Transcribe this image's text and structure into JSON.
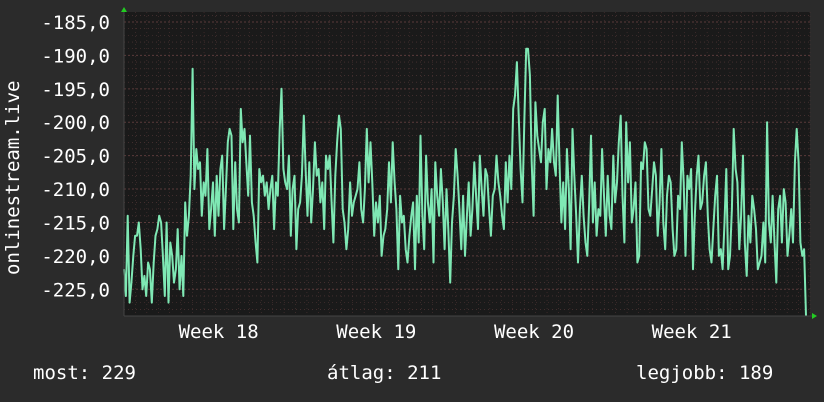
{
  "chart_data": {
    "type": "line",
    "ylabel": "onlinestream.live",
    "y_ticks": [
      "-185,0",
      "-190,0",
      "-195,0",
      "-200,0",
      "-205,0",
      "-210,0",
      "-215,0",
      "-220,0",
      "-225,0"
    ],
    "y_tick_values": [
      -185,
      -190,
      -195,
      -200,
      -205,
      -210,
      -215,
      -220,
      -225
    ],
    "ylim": [
      -229,
      -183.5
    ],
    "x_ticks": [
      "Week 18",
      "Week 19",
      "Week 20",
      "Week 21"
    ],
    "x_tick_positions": [
      17.6,
      18.6,
      19.6,
      20.6
    ],
    "xlim": [
      17.0,
      21.35
    ],
    "grid": true,
    "colors": {
      "background": "#2b2b2b",
      "plot_background": "#1a1a1a",
      "grid": "#5a3a3a",
      "line": "#7fe8b4",
      "axis_arrow": "#22cc22"
    },
    "series": [
      {
        "values": [
          -222,
          -226,
          -214,
          -227,
          -224,
          -220,
          -217,
          -217,
          -215,
          -219,
          -225,
          -223,
          -226,
          -221,
          -222,
          -227,
          -221,
          -217,
          -216,
          -214,
          -215,
          -220,
          -226,
          -215,
          -227,
          -218,
          -220,
          -224,
          -222,
          -216,
          -225,
          -220,
          -226,
          -212,
          -217,
          -214,
          -208,
          -192,
          -210,
          -204,
          -207,
          -206,
          -214,
          -209,
          -211,
          -204,
          -216,
          -213,
          -209,
          -217,
          -208,
          -214,
          -207,
          -205,
          -216,
          -210,
          -203,
          -201,
          -202,
          -216,
          -206,
          -213,
          -215,
          -198,
          -203,
          -201,
          -206,
          -211,
          -202,
          -212,
          -214,
          -218,
          -221,
          -207,
          -209,
          -208,
          -211,
          -209,
          -213,
          -210,
          -208,
          -216,
          -209,
          -211,
          -201,
          -195,
          -207,
          -209,
          -210,
          -205,
          -217,
          -210,
          -208,
          -219,
          -213,
          -212,
          -208,
          -199,
          -207,
          -214,
          -206,
          -215,
          -210,
          -203,
          -208,
          -207,
          -212,
          -209,
          -216,
          -205,
          -207,
          -205,
          -212,
          -218,
          -208,
          -203,
          -199,
          -201,
          -213,
          -215,
          -219,
          -216,
          -209,
          -214,
          -212,
          -211,
          -210,
          -206,
          -213,
          -215,
          -210,
          -201,
          -209,
          -203,
          -209,
          -217,
          -212,
          -215,
          -211,
          -220,
          -217,
          -216,
          -213,
          -206,
          -212,
          -203,
          -209,
          -213,
          -222,
          -211,
          -215,
          -214,
          -219,
          -221,
          -217,
          -214,
          -212,
          -222,
          -211,
          -218,
          -202,
          -214,
          -219,
          -205,
          -212,
          -215,
          -210,
          -221,
          -206,
          -211,
          -214,
          -207,
          -212,
          -219,
          -210,
          -216,
          -224,
          -215,
          -211,
          -204,
          -208,
          -213,
          -219,
          -211,
          -220,
          -214,
          -209,
          -217,
          -213,
          -206,
          -211,
          -216,
          -205,
          -210,
          -214,
          -207,
          -208,
          -213,
          -217,
          -211,
          -210,
          -205,
          -209,
          -211,
          -214,
          -216,
          -206,
          -212,
          -205,
          -210,
          -198,
          -196,
          -191,
          -199,
          -207,
          -212,
          -200,
          -189,
          -189,
          -193,
          -206,
          -214,
          -197,
          -202,
          -204,
          -206,
          -200,
          -198,
          -210,
          -204,
          -206,
          -201,
          -206,
          -208,
          -196,
          -206,
          -215,
          -209,
          -216,
          -204,
          -210,
          -219,
          -201,
          -208,
          -214,
          -221,
          -213,
          -208,
          -214,
          -218,
          -220,
          -212,
          -202,
          -215,
          -209,
          -217,
          -213,
          -214,
          -204,
          -211,
          -217,
          -208,
          -214,
          -216,
          -205,
          -212,
          -209,
          -203,
          -199,
          -211,
          -218,
          -200,
          -209,
          -203,
          -215,
          -213,
          -209,
          -221,
          -220,
          -206,
          -207,
          -203,
          -204,
          -213,
          -214,
          -210,
          -206,
          -208,
          -217,
          -212,
          -204,
          -215,
          -219,
          -211,
          -208,
          -209,
          -216,
          -220,
          -219,
          -211,
          -213,
          -203,
          -209,
          -220,
          -208,
          -210,
          -207,
          -222,
          -214,
          -208,
          -205,
          -213,
          -212,
          -208,
          -206,
          -214,
          -219,
          -221,
          -216,
          -211,
          -208,
          -220,
          -219,
          -222,
          -215,
          -207,
          -222,
          -220,
          -213,
          -201,
          -207,
          -209,
          -219,
          -214,
          -205,
          -218,
          -223,
          -214,
          -218,
          -211,
          -213,
          -216,
          -222,
          -221,
          -220,
          -215,
          -221,
          -200,
          -215,
          -218,
          -211,
          -218,
          -224,
          -213,
          -211,
          -218,
          -210,
          -212,
          -220,
          -217,
          -213,
          -218,
          -206,
          -201,
          -206,
          -218,
          -220,
          -219,
          -229
        ]
      }
    ]
  },
  "footer": {
    "now": "most: 229",
    "avg": "átlag: 211",
    "best": "legjobb: 189"
  }
}
